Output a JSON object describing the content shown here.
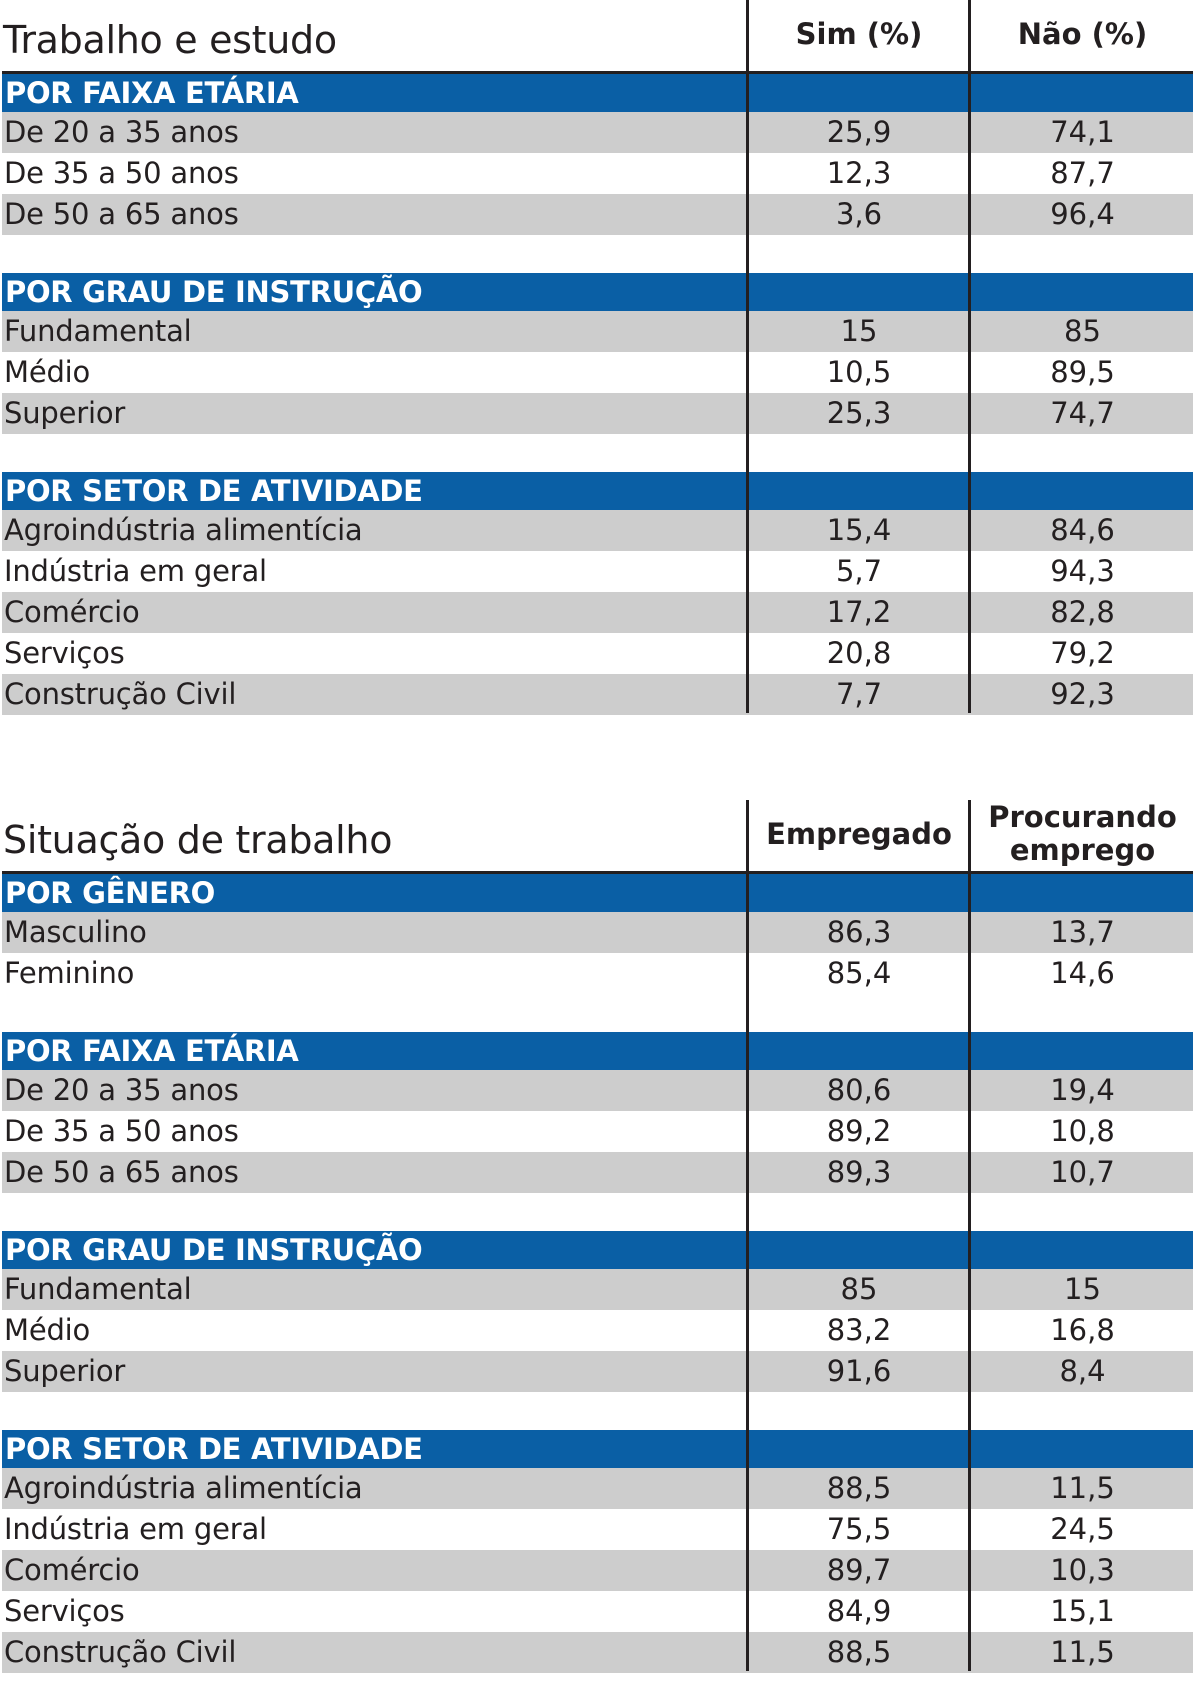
{
  "chart_data": [
    {
      "type": "table",
      "title": "Trabalho e estudo",
      "columns": [
        "Sim (%)",
        "Não (%)"
      ],
      "groups": [
        {
          "name": "POR FAIXA ETÁRIA",
          "rows": [
            {
              "label": "De 20 a 35 anos",
              "values": [
                "25,9",
                "74,1"
              ]
            },
            {
              "label": "De 35 a 50 anos",
              "values": [
                "12,3",
                "87,7"
              ]
            },
            {
              "label": "De 50 a 65 anos",
              "values": [
                "3,6",
                "96,4"
              ]
            }
          ]
        },
        {
          "name": "POR GRAU DE INSTRUÇÃO",
          "rows": [
            {
              "label": "Fundamental",
              "values": [
                "15",
                "85"
              ]
            },
            {
              "label": "Médio",
              "values": [
                "10,5",
                "89,5"
              ]
            },
            {
              "label": "Superior",
              "values": [
                "25,3",
                "74,7"
              ]
            }
          ]
        },
        {
          "name": "POR SETOR DE ATIVIDADE",
          "rows": [
            {
              "label": "Agroindústria alimentícia",
              "values": [
                "15,4",
                "84,6"
              ]
            },
            {
              "label": "Indústria em geral",
              "values": [
                "5,7",
                "94,3"
              ]
            },
            {
              "label": "Comércio",
              "values": [
                "17,2",
                "82,8"
              ]
            },
            {
              "label": "Serviços",
              "values": [
                "20,8",
                "79,2"
              ]
            },
            {
              "label": "Construção Civil",
              "values": [
                "7,7",
                "92,3"
              ]
            }
          ]
        }
      ]
    },
    {
      "type": "table",
      "title": "Situação de trabalho",
      "columns": [
        "Empregado",
        "Procurando emprego"
      ],
      "groups": [
        {
          "name": "POR GÊNERO",
          "rows": [
            {
              "label": "Masculino",
              "values": [
                "86,3",
                "13,7"
              ]
            },
            {
              "label": "Feminino",
              "values": [
                "85,4",
                "14,6"
              ]
            }
          ]
        },
        {
          "name": "POR FAIXA ETÁRIA",
          "rows": [
            {
              "label": "De 20 a 35 anos",
              "values": [
                "80,6",
                "19,4"
              ]
            },
            {
              "label": "De 35 a 50 anos",
              "values": [
                "89,2",
                "10,8"
              ]
            },
            {
              "label": "De 50 a 65 anos",
              "values": [
                "89,3",
                "10,7"
              ]
            }
          ]
        },
        {
          "name": "POR GRAU DE INSTRUÇÃO",
          "rows": [
            {
              "label": "Fundamental",
              "values": [
                "85",
                "15"
              ]
            },
            {
              "label": "Médio",
              "values": [
                "83,2",
                "16,8"
              ]
            },
            {
              "label": "Superior",
              "values": [
                "91,6",
                "8,4"
              ]
            }
          ]
        },
        {
          "name": "POR SETOR DE ATIVIDADE",
          "rows": [
            {
              "label": "Agroindústria alimentícia",
              "values": [
                "88,5",
                "11,5"
              ]
            },
            {
              "label": "Indústria em geral",
              "values": [
                "75,5",
                "24,5"
              ]
            },
            {
              "label": "Comércio",
              "values": [
                "89,7",
                "10,3"
              ]
            },
            {
              "label": "Serviços",
              "values": [
                "84,9",
                "15,1"
              ]
            },
            {
              "label": "Construção Civil",
              "values": [
                "88,5",
                "11,5"
              ]
            }
          ]
        }
      ]
    }
  ],
  "colors": {
    "group_header_bg": "#0a5fa5",
    "row_shade": "#cdcdcd",
    "rule": "#231f20"
  }
}
